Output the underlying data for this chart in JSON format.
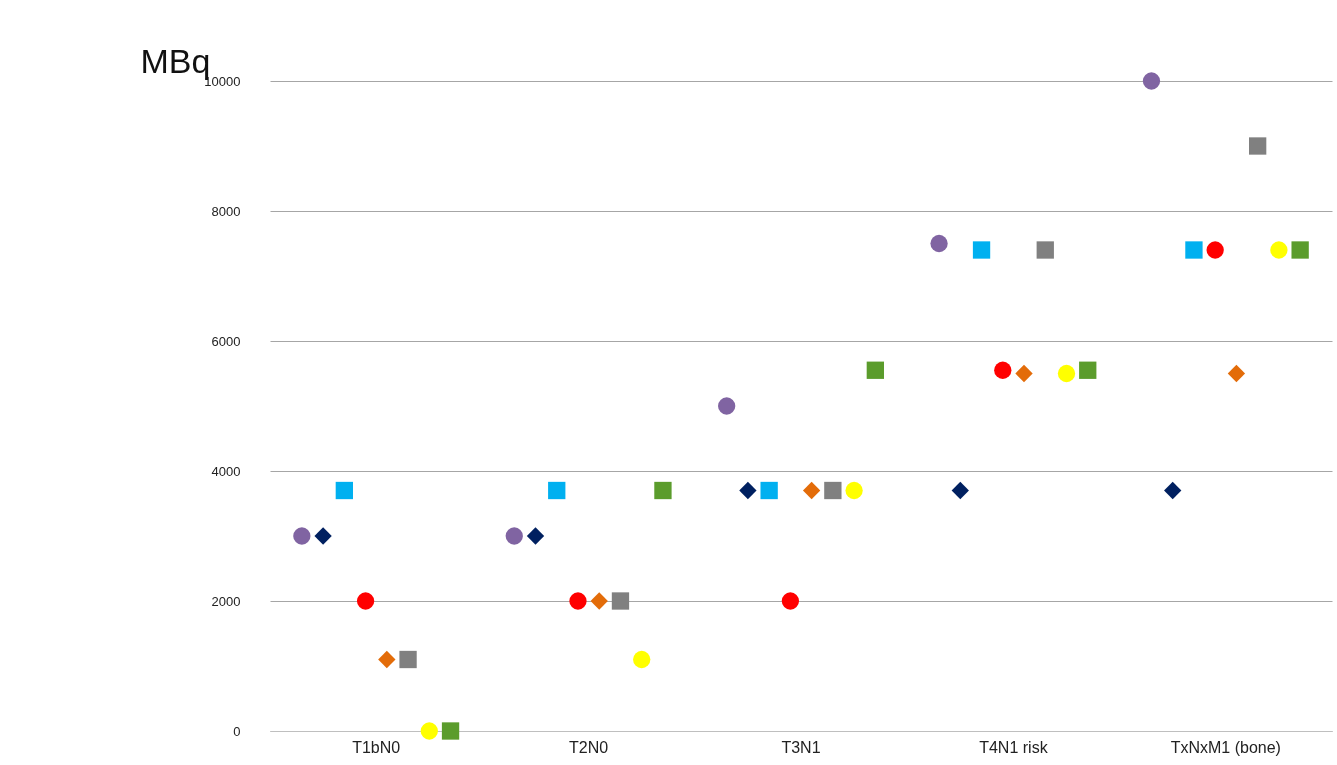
{
  "chart_data": {
    "type": "scatter",
    "ylabel": "MBq",
    "categories": [
      "T1bN0",
      "T2N0",
      "T3N1",
      "T4N1 risk",
      "TxNxM1 (bone)"
    ],
    "ylim": [
      0,
      10000
    ],
    "yticks": [
      0,
      2000,
      4000,
      6000,
      8000,
      10000
    ],
    "grid": "y",
    "legend": false,
    "series": [
      {
        "color": "#8064a2",
        "marker": "circle",
        "values": [
          3000,
          3000,
          5000,
          7500,
          10000
        ]
      },
      {
        "color": "#002060",
        "marker": "diamond",
        "values": [
          3000,
          3000,
          3700,
          3700,
          3700
        ]
      },
      {
        "color": "#00b0f0",
        "marker": "square",
        "values": [
          3700,
          3700,
          3700,
          7400,
          7400
        ]
      },
      {
        "color": "#ff0000",
        "marker": "circle",
        "values": [
          2000,
          2000,
          2000,
          5550,
          7400
        ]
      },
      {
        "color": "#e36c09",
        "marker": "diamond",
        "values": [
          1100,
          2000,
          3700,
          5500,
          5500
        ]
      },
      {
        "color": "#808080",
        "marker": "square",
        "values": [
          1100,
          2000,
          3700,
          7400,
          9000
        ]
      },
      {
        "color": "#ffff00",
        "marker": "circle",
        "values": [
          0,
          1100,
          3700,
          5500,
          7400
        ]
      },
      {
        "color": "#5b9c2c",
        "marker": "square",
        "values": [
          0,
          3700,
          5550,
          5550,
          7400
        ]
      }
    ]
  }
}
